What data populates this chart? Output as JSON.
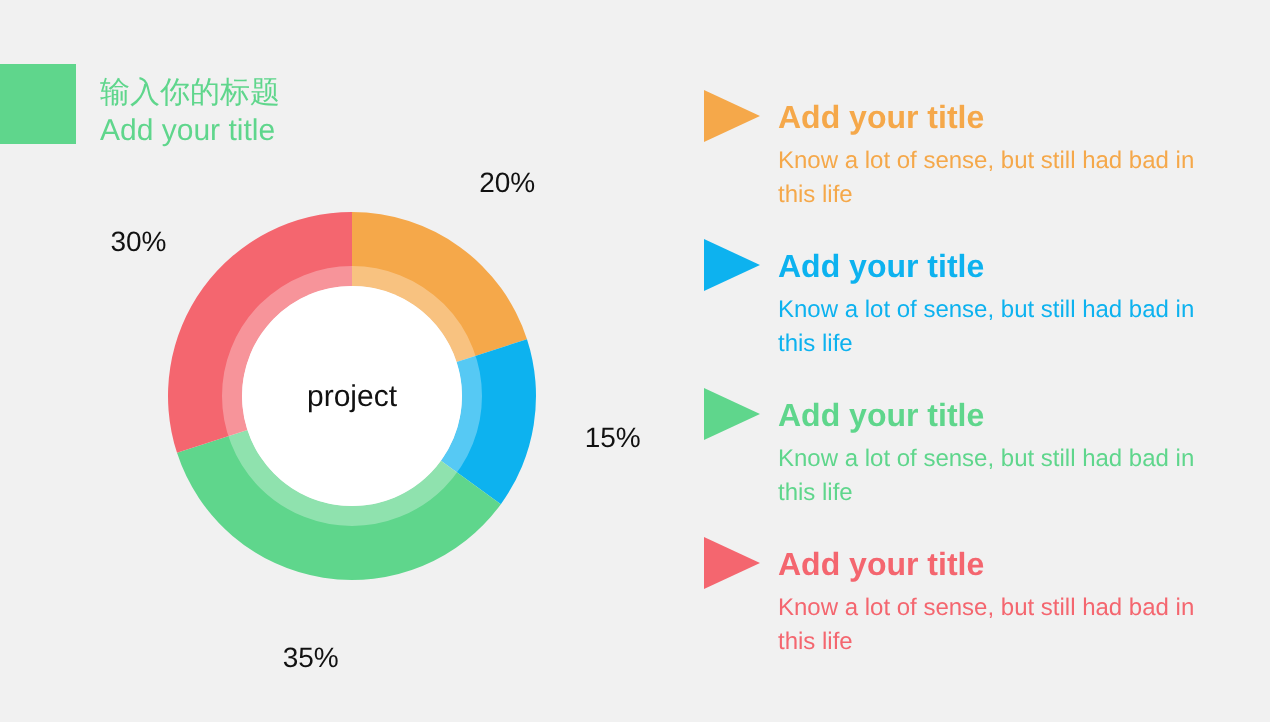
{
  "chart_data": {
    "type": "donut",
    "title": "输入你的标题",
    "subtitle": "Add your title",
    "categories": [
      null,
      null,
      null,
      null
    ],
    "values": [
      20,
      15,
      35,
      30
    ],
    "value_labels": [
      "20%",
      "15%",
      "35%",
      "30%"
    ],
    "colors": [
      "#f5a84a",
      "#0db2ef",
      "#5fd68c",
      "#f4666f"
    ],
    "annotations": [
      "project",
      "Add your title",
      "Know a lot of sense, but still had bad in this life",
      "Add your title",
      "Know a lot of sense, but still had bad in this life",
      "Add your title",
      "Know a lot of sense, but still had bad in this life",
      "Add your title",
      "Know a lot of sense, but still had bad in this life"
    ]
  }
}
